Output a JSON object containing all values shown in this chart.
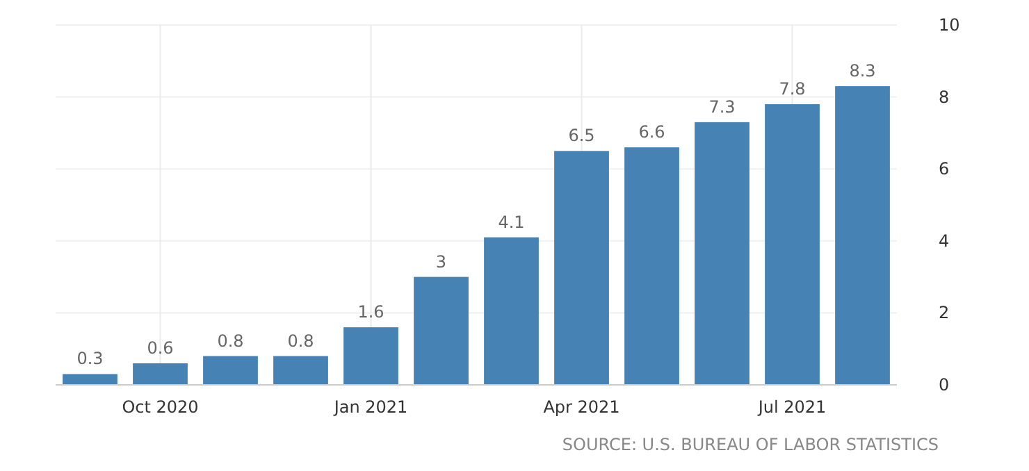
{
  "chart_data": {
    "type": "bar",
    "categories": [
      null,
      "Oct 2020",
      null,
      null,
      "Jan 2021",
      null,
      null,
      "Apr 2021",
      null,
      null,
      "Jul 2021",
      null
    ],
    "values": [
      0.3,
      0.6,
      0.8,
      0.8,
      1.6,
      3,
      4.1,
      6.5,
      6.6,
      7.3,
      7.8,
      8.3
    ],
    "color": "#4682b4",
    "data_labels": true,
    "ylim": [
      0,
      10
    ],
    "yticks": [
      0,
      2,
      4,
      6,
      8,
      10
    ],
    "grid": true,
    "annotations": [
      "SOURCE: U.S. BUREAU OF LABOR STATISTICS"
    ]
  }
}
